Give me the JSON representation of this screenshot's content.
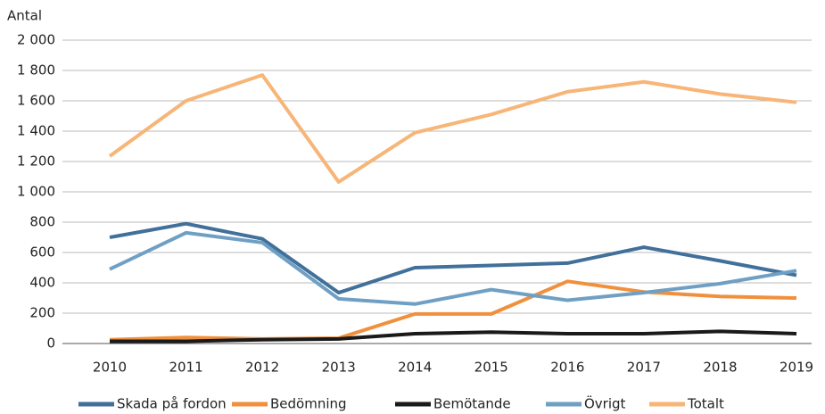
{
  "chart_data": {
    "type": "line",
    "y_axis_label": "Antal",
    "categories": [
      "2010",
      "2011",
      "2012",
      "2013",
      "2014",
      "2015",
      "2016",
      "2017",
      "2018",
      "2019"
    ],
    "series": [
      {
        "name": "Skada på fordon",
        "color": "#41709a",
        "values": [
          700,
          790,
          690,
          335,
          500,
          515,
          530,
          635,
          545,
          450
        ]
      },
      {
        "name": "Bedömning",
        "color": "#f0903c",
        "values": [
          25,
          40,
          30,
          35,
          195,
          195,
          410,
          340,
          310,
          300
        ]
      },
      {
        "name": "Bemötande",
        "color": "#1a1a1a",
        "values": [
          15,
          15,
          25,
          30,
          65,
          75,
          65,
          65,
          80,
          65
        ]
      },
      {
        "name": "Övrigt",
        "color": "#6fa0c4",
        "values": [
          490,
          730,
          665,
          295,
          260,
          355,
          285,
          335,
          395,
          480
        ]
      },
      {
        "name": "Totalt",
        "color": "#f7b577",
        "values": [
          1235,
          1600,
          1770,
          1065,
          1390,
          1510,
          1660,
          1725,
          1645,
          1590
        ]
      }
    ],
    "ylim": [
      0,
      2000
    ],
    "yticks": [
      0,
      200,
      400,
      600,
      800,
      {
        "value": 1000,
        "label": "1 000"
      },
      {
        "value": 1200,
        "label": "1 200"
      },
      {
        "value": 1400,
        "label": "1 400"
      },
      {
        "value": 1600,
        "label": "1 600"
      },
      {
        "value": 1800,
        "label": "1 800"
      },
      {
        "value": 2000,
        "label": "2 000"
      }
    ],
    "grid": true,
    "legend": "bottom"
  }
}
